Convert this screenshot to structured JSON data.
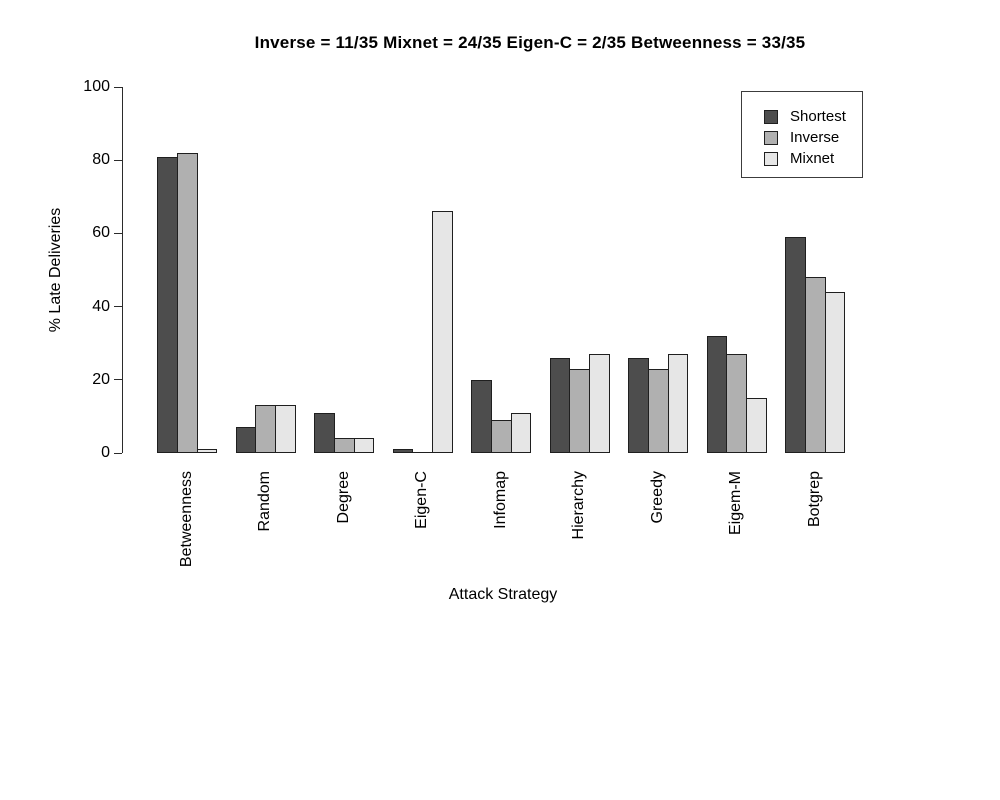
{
  "chart_data": {
    "type": "bar",
    "title": "Inverse = 11/35 Mixnet = 24/35 Eigen-C = 2/35 Betweenness = 33/35",
    "xlabel": "Attack Strategy",
    "ylabel": "% Late Deliveries",
    "ylim": [
      0,
      100
    ],
    "yticks": [
      0,
      20,
      40,
      60,
      80,
      100
    ],
    "grid": false,
    "legend_position": "top-right",
    "bar_border_color": "#1f1f1f",
    "categories": [
      "Betweenness",
      "Random",
      "Degree",
      "Eigen-C",
      "Infomap",
      "Hierarchy",
      "Greedy",
      "Eigem-M",
      "Botgrep"
    ],
    "series": [
      {
        "name": "Shortest",
        "color": "#4d4d4d",
        "values": [
          81,
          7,
          11,
          1,
          20,
          26,
          26,
          32,
          59
        ]
      },
      {
        "name": "Inverse",
        "color": "#b0b0b0",
        "values": [
          82,
          13,
          4,
          0,
          9,
          23,
          23,
          27,
          48
        ]
      },
      {
        "name": "Mixnet",
        "color": "#e6e6e6",
        "values": [
          1,
          13,
          4,
          66,
          11,
          27,
          27,
          15,
          44
        ]
      }
    ]
  }
}
